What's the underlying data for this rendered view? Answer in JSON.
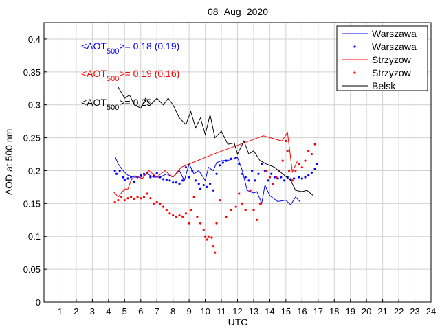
{
  "chart_data": {
    "type": "line",
    "title": "08−Aug−2020",
    "xlabel": "UTC",
    "ylabel": "AOD at 500 nm",
    "xlim": [
      0,
      24
    ],
    "ylim": [
      0,
      0.425
    ],
    "grid": true,
    "x_ticks": [
      "1",
      "2",
      "3",
      "4",
      "5",
      "6",
      "7",
      "8",
      "9",
      "10",
      "11",
      "12",
      "13",
      "14",
      "15",
      "16",
      "17",
      "18",
      "19",
      "20",
      "21",
      "22",
      "23",
      "24"
    ],
    "y_ticks": [
      "0",
      "0.05",
      "0.1",
      "0.15",
      "0.2",
      "0.25",
      "0.3",
      "0.35",
      "0.4"
    ],
    "legend_position": "top-right",
    "legend": [
      "Warszawa",
      "Warszawa",
      "Strzyzow",
      "Strzyzow",
      "Belsk"
    ],
    "annotations": [
      {
        "prefix": "<AOT",
        "sub": "500",
        "suffix": ">= 0.18 (0.19)",
        "color": "#0000ff"
      },
      {
        "prefix": "<AOT",
        "sub": "500",
        "suffix": ">= 0.19 (0.16)",
        "color": "#ff0000"
      },
      {
        "prefix": "<AOT",
        "sub": "500",
        "suffix": ">= 0.25",
        "color": "#000000"
      }
    ],
    "series": [
      {
        "name": "Warszawa",
        "style": "line",
        "color": "#0000ff",
        "points": [
          [
            4.4,
            0.222
          ],
          [
            4.6,
            0.21
          ],
          [
            4.9,
            0.2
          ],
          [
            5.2,
            0.193
          ],
          [
            5.6,
            0.19
          ],
          [
            6.0,
            0.19
          ],
          [
            6.4,
            0.195
          ],
          [
            6.8,
            0.19
          ],
          [
            7.2,
            0.19
          ],
          [
            7.6,
            0.195
          ],
          [
            8.0,
            0.19
          ],
          [
            8.4,
            0.2
          ],
          [
            8.7,
            0.185
          ],
          [
            9.0,
            0.21
          ],
          [
            9.3,
            0.195
          ],
          [
            9.6,
            0.2
          ],
          [
            10.0,
            0.185
          ],
          [
            10.2,
            0.205
          ],
          [
            10.5,
            0.2
          ],
          [
            10.7,
            0.212
          ],
          [
            11.0,
            0.215
          ],
          [
            11.5,
            0.216
          ],
          [
            12.0,
            0.22
          ],
          [
            12.3,
            0.2
          ],
          [
            12.6,
            0.17
          ],
          [
            13.0,
            0.166
          ],
          [
            13.2,
            0.168
          ],
          [
            13.5,
            0.15
          ],
          [
            13.7,
            0.178
          ],
          [
            14.0,
            0.162
          ],
          [
            14.5,
            0.153
          ],
          [
            15.0,
            0.155
          ],
          [
            15.3,
            0.148
          ],
          [
            15.6,
            0.16
          ],
          [
            15.9,
            0.152
          ]
        ]
      },
      {
        "name": "Warszawa",
        "style": "dots",
        "color": "#0000ff",
        "points": [
          [
            4.4,
            0.2
          ],
          [
            4.5,
            0.195
          ],
          [
            4.7,
            0.2
          ],
          [
            4.9,
            0.19
          ],
          [
            5.0,
            0.186
          ],
          [
            5.2,
            0.188
          ],
          [
            5.4,
            0.19
          ],
          [
            5.6,
            0.183
          ],
          [
            5.8,
            0.19
          ],
          [
            6.0,
            0.193
          ],
          [
            6.2,
            0.195
          ],
          [
            6.4,
            0.197
          ],
          [
            6.6,
            0.19
          ],
          [
            6.8,
            0.192
          ],
          [
            7.0,
            0.196
          ],
          [
            7.2,
            0.19
          ],
          [
            7.4,
            0.187
          ],
          [
            7.6,
            0.186
          ],
          [
            7.8,
            0.185
          ],
          [
            8.0,
            0.182
          ],
          [
            8.2,
            0.182
          ],
          [
            8.4,
            0.18
          ],
          [
            8.6,
            0.185
          ],
          [
            8.8,
            0.205
          ],
          [
            9.0,
            0.19
          ],
          [
            9.2,
            0.2
          ],
          [
            9.4,
            0.185
          ],
          [
            9.6,
            0.18
          ],
          [
            9.7,
            0.172
          ],
          [
            9.9,
            0.178
          ],
          [
            10.1,
            0.175
          ],
          [
            10.3,
            0.18
          ],
          [
            10.5,
            0.17
          ],
          [
            10.7,
            0.195
          ],
          [
            10.9,
            0.208
          ],
          [
            11.1,
            0.212
          ],
          [
            11.3,
            0.215
          ],
          [
            11.6,
            0.218
          ],
          [
            11.9,
            0.22
          ],
          [
            12.1,
            0.21
          ],
          [
            12.3,
            0.195
          ],
          [
            12.5,
            0.19
          ],
          [
            12.7,
            0.185
          ],
          [
            12.9,
            0.2
          ],
          [
            13.1,
            0.185
          ],
          [
            13.3,
            0.195
          ],
          [
            13.5,
            0.21
          ],
          [
            13.7,
            0.2
          ],
          [
            13.9,
            0.185
          ],
          [
            14.1,
            0.195
          ],
          [
            14.3,
            0.19
          ],
          [
            14.5,
            0.188
          ],
          [
            14.7,
            0.19
          ],
          [
            14.9,
            0.185
          ],
          [
            15.1,
            0.19
          ],
          [
            15.3,
            0.187
          ],
          [
            15.5,
            0.188
          ],
          [
            15.8,
            0.19
          ],
          [
            16.0,
            0.188
          ],
          [
            16.2,
            0.19
          ],
          [
            16.4,
            0.193
          ],
          [
            16.6,
            0.197
          ],
          [
            16.8,
            0.203
          ],
          [
            16.9,
            0.21
          ]
        ]
      },
      {
        "name": "Strzyzow",
        "style": "line",
        "color": "#ff0000",
        "points": [
          [
            4.3,
            0.168
          ],
          [
            4.6,
            0.16
          ],
          [
            5.0,
            0.172
          ],
          [
            5.2,
            0.172
          ],
          [
            5.4,
            0.185
          ],
          [
            5.6,
            0.192
          ],
          [
            6.1,
            0.188
          ],
          [
            6.5,
            0.2
          ],
          [
            7.0,
            0.19
          ],
          [
            7.5,
            0.2
          ],
          [
            8.0,
            0.19
          ],
          [
            8.5,
            0.205
          ],
          [
            9.0,
            0.21
          ],
          [
            10.5,
            0.225
          ],
          [
            12.5,
            0.243
          ],
          [
            13.6,
            0.253
          ],
          [
            14.75,
            0.245
          ],
          [
            15.1,
            0.258
          ],
          [
            15.4,
            0.198
          ],
          [
            15.7,
            0.214
          ]
        ]
      },
      {
        "name": "Strzyzow",
        "style": "dots",
        "color": "#ff0000",
        "points": [
          [
            4.4,
            0.152
          ],
          [
            4.6,
            0.155
          ],
          [
            4.8,
            0.16
          ],
          [
            5.0,
            0.155
          ],
          [
            5.2,
            0.158
          ],
          [
            5.4,
            0.16
          ],
          [
            5.6,
            0.157
          ],
          [
            5.8,
            0.16
          ],
          [
            6.0,
            0.158
          ],
          [
            6.2,
            0.16
          ],
          [
            6.4,
            0.165
          ],
          [
            6.6,
            0.158
          ],
          [
            6.8,
            0.15
          ],
          [
            7.0,
            0.152
          ],
          [
            7.2,
            0.15
          ],
          [
            7.4,
            0.145
          ],
          [
            7.6,
            0.14
          ],
          [
            7.8,
            0.135
          ],
          [
            8.0,
            0.132
          ],
          [
            8.2,
            0.13
          ],
          [
            8.4,
            0.132
          ],
          [
            8.6,
            0.13
          ],
          [
            8.8,
            0.135
          ],
          [
            9.0,
            0.12
          ],
          [
            9.1,
            0.14
          ],
          [
            9.3,
            0.16
          ],
          [
            9.5,
            0.13
          ],
          [
            9.7,
            0.12
          ],
          [
            9.9,
            0.11
          ],
          [
            10.0,
            0.1
          ],
          [
            10.1,
            0.095
          ],
          [
            10.2,
            0.1
          ],
          [
            10.4,
            0.098
          ],
          [
            10.5,
            0.085
          ],
          [
            10.6,
            0.075
          ],
          [
            10.7,
            0.12
          ],
          [
            10.9,
            0.155
          ],
          [
            11.3,
            0.13
          ],
          [
            11.6,
            0.14
          ],
          [
            11.9,
            0.145
          ],
          [
            12.1,
            0.165
          ],
          [
            12.3,
            0.15
          ],
          [
            12.5,
            0.14
          ],
          [
            12.8,
            0.17
          ],
          [
            13.0,
            0.14
          ],
          [
            13.2,
            0.125
          ],
          [
            13.4,
            0.15
          ],
          [
            13.8,
            0.2
          ],
          [
            14.0,
            0.19
          ],
          [
            14.2,
            0.18
          ],
          [
            14.4,
            0.19
          ],
          [
            14.6,
            0.2
          ],
          [
            14.8,
            0.215
          ],
          [
            15.0,
            0.245
          ],
          [
            15.1,
            0.23
          ],
          [
            15.2,
            0.2
          ],
          [
            15.4,
            0.185
          ],
          [
            15.6,
            0.2
          ],
          [
            15.8,
            0.21
          ],
          [
            16.0,
            0.205
          ],
          [
            16.2,
            0.215
          ],
          [
            16.4,
            0.23
          ],
          [
            16.6,
            0.225
          ],
          [
            16.8,
            0.24
          ]
        ]
      },
      {
        "name": "Belsk",
        "style": "line",
        "color": "#000000",
        "points": [
          [
            4.6,
            0.327
          ],
          [
            5.0,
            0.31
          ],
          [
            5.3,
            0.315
          ],
          [
            5.6,
            0.3
          ],
          [
            6.0,
            0.295
          ],
          [
            6.3,
            0.31
          ],
          [
            6.6,
            0.3
          ],
          [
            7.0,
            0.31
          ],
          [
            7.4,
            0.3
          ],
          [
            7.7,
            0.31
          ],
          [
            8.0,
            0.3
          ],
          [
            8.4,
            0.28
          ],
          [
            8.8,
            0.27
          ],
          [
            9.1,
            0.29
          ],
          [
            9.4,
            0.265
          ],
          [
            9.7,
            0.28
          ],
          [
            10.0,
            0.255
          ],
          [
            10.3,
            0.285
          ],
          [
            10.6,
            0.25
          ],
          [
            11.0,
            0.26
          ],
          [
            11.4,
            0.24
          ],
          [
            11.8,
            0.242
          ],
          [
            12.0,
            0.225
          ],
          [
            12.4,
            0.245
          ],
          [
            12.7,
            0.225
          ],
          [
            13.0,
            0.23
          ],
          [
            13.4,
            0.215
          ],
          [
            13.8,
            0.21
          ],
          [
            14.3,
            0.205
          ],
          [
            14.8,
            0.195
          ],
          [
            15.3,
            0.185
          ],
          [
            15.6,
            0.17
          ],
          [
            16.0,
            0.168
          ],
          [
            16.3,
            0.17
          ],
          [
            16.7,
            0.162
          ]
        ]
      }
    ]
  }
}
